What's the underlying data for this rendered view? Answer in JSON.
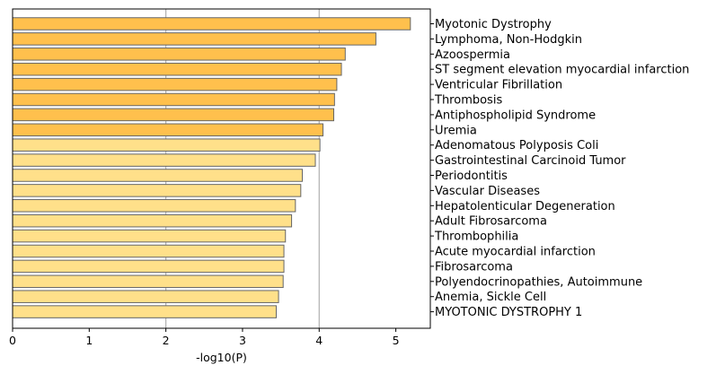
{
  "chart_data": {
    "type": "bar",
    "orientation": "horizontal",
    "categories": [
      "Myotonic Dystrophy",
      "Lymphoma, Non-Hodgkin",
      "Azoospermia",
      "ST segment elevation myocardial infarction",
      "Ventricular Fibrillation",
      "Thrombosis",
      "Antiphospholipid Syndrome",
      "Uremia",
      "Adenomatous Polyposis Coli",
      "Gastrointestinal Carcinoid Tumor",
      "Periodontitis",
      "Vascular Diseases",
      "Hepatolenticular Degeneration",
      "Adult Fibrosarcoma",
      "Thrombophilia",
      "Acute myocardial infarction",
      "Fibrosarcoma",
      "Polyendocrinopathies, Autoimmune",
      "Anemia, Sickle Cell",
      "MYOTONIC DYSTROPHY 1"
    ],
    "values": [
      5.19,
      4.74,
      4.34,
      4.29,
      4.23,
      4.2,
      4.19,
      4.05,
      4.01,
      3.95,
      3.78,
      3.76,
      3.69,
      3.64,
      3.56,
      3.54,
      3.54,
      3.53,
      3.47,
      3.44
    ],
    "bar_colors": [
      "#ffc04d",
      "#ffc04d",
      "#ffc04d",
      "#ffc04d",
      "#ffc04d",
      "#ffc04d",
      "#ffc04d",
      "#ffc04d",
      "#ffe08a",
      "#ffe08a",
      "#ffe08a",
      "#ffe08a",
      "#ffe08a",
      "#ffe08a",
      "#ffe08a",
      "#ffe08a",
      "#ffe08a",
      "#ffe08a",
      "#ffe08a",
      "#ffe08a"
    ],
    "edge_color": "#666666",
    "xlabel": "-log10(P)",
    "ylabel": "",
    "title": "",
    "xlim": [
      0,
      5.45
    ],
    "xticks": [
      "0",
      "1",
      "2",
      "3",
      "4",
      "5"
    ],
    "gridlines_x": [
      2,
      4
    ],
    "grid": "vertical lines at x=2 and x=4",
    "category_label_side": "right"
  }
}
